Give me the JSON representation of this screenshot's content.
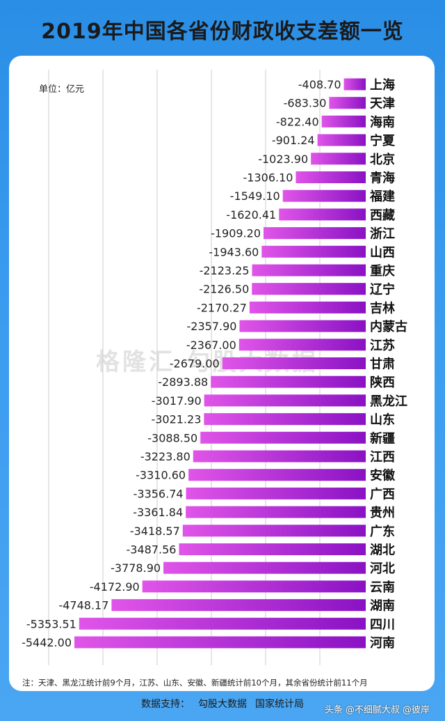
{
  "title": "2019年中国各省份财政收支差额一览",
  "unit_label": "单位：亿元",
  "note": "注：天津、黑龙江统计前9个月，江苏、山东、安徽、新疆统计前10个月，其余省份统计前11个月",
  "source": {
    "label": "数据支持：",
    "items": [
      "勾股大数据",
      "国家统计局"
    ]
  },
  "watermark": "格隆汇 勾股大数据",
  "corner_watermark": "头条 @不细腻大叔 @彼岸",
  "colors": {
    "bar_start": "#e055e8",
    "bar_end": "#8a12c4",
    "grid": "#cccccc"
  },
  "chart_data": {
    "type": "bar",
    "orientation": "horizontal",
    "title": "2019年中国各省份财政收支差额一览",
    "unit": "亿元",
    "xlim": [
      -5600,
      0
    ],
    "grid": true,
    "categories": [
      "上海",
      "天津",
      "海南",
      "宁夏",
      "北京",
      "青海",
      "福建",
      "西藏",
      "浙江",
      "山西",
      "重庆",
      "辽宁",
      "吉林",
      "内蒙古",
      "江苏",
      "甘肃",
      "陕西",
      "黑龙江",
      "山东",
      "新疆",
      "江西",
      "安徽",
      "广西",
      "贵州",
      "广东",
      "湖北",
      "河北",
      "云南",
      "湖南",
      "四川",
      "河南"
    ],
    "values": [
      -408.7,
      -683.3,
      -822.4,
      -901.24,
      -1023.9,
      -1306.1,
      -1549.1,
      -1620.41,
      -1909.2,
      -1943.6,
      -2123.25,
      -2126.5,
      -2170.27,
      -2357.9,
      -2367.0,
      -2679.0,
      -2893.88,
      -3017.9,
      -3021.23,
      -3088.5,
      -3223.8,
      -3310.6,
      -3356.74,
      -3361.84,
      -3418.57,
      -3487.56,
      -3778.9,
      -4172.9,
      -4748.17,
      -5353.51,
      -5442.0
    ],
    "value_labels": [
      "-408.70",
      "-683.30",
      "-822.40",
      "-901.24",
      "-1023.90",
      "-1306.10",
      "-1549.10",
      "-1620.41",
      "-1909.20",
      "-1943.60",
      "-2123.25",
      "-2126.50",
      "-2170.27",
      "-2357.90",
      "-2367.00",
      "-2679.00",
      "-2893.88",
      "-3017.90",
      "-3021.23",
      "-3088.50",
      "-3223.80",
      "-3310.60",
      "-3356.74",
      "-3361.84",
      "-3418.57",
      "-3487.56",
      "-3778.90",
      "-4172.90",
      "-4748.17",
      "-5353.51",
      "-5442.00"
    ]
  }
}
